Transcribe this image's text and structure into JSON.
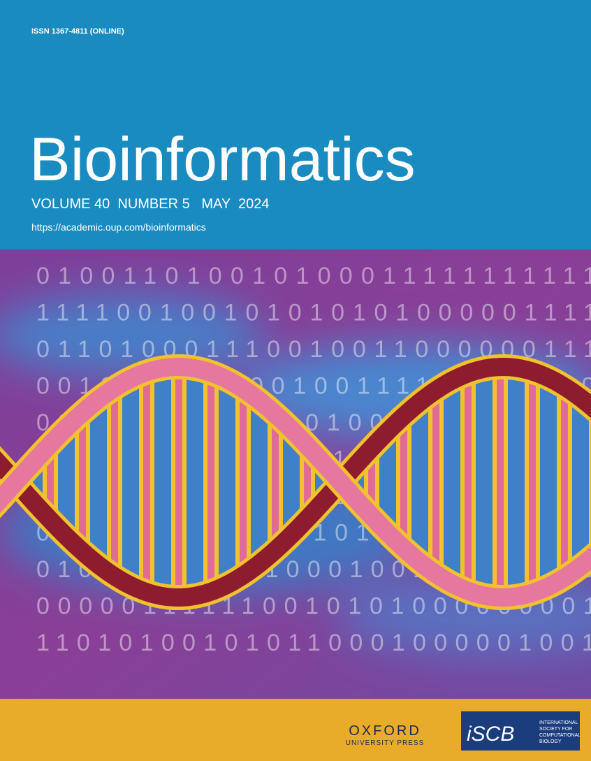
{
  "header": {
    "issn": "ISSN 1367-4811 (ONLINE)",
    "title": "Bioinformatics",
    "issue": "VOLUME 40  NUMBER 5   MAY  2024",
    "url": "https://academic.oup.com/bioinformatics"
  },
  "art": {
    "binary_rows": [
      "0100110100101000111111111111",
      "1111001001010101010000011111",
      "0110100011100100110000001111",
      "0010001000001001111111000000",
      "0001111111001010001001101100",
      "0100100100000111110100100110",
      "0001110001001010101111111110",
      "0100000100100101111101011010",
      "0100010001110001001010000101",
      "0000011111100101010000000011",
      "1101010010101100010000010010"
    ]
  },
  "footer": {
    "publisher": "OXFORD",
    "publisher_sub": "UNIVERSITY PRESS",
    "society_logo": "iSCB",
    "society_name": [
      "INTERNATIONAL",
      "SOCIETY FOR",
      "COMPUTATIONAL",
      "BIOLOGY"
    ]
  }
}
